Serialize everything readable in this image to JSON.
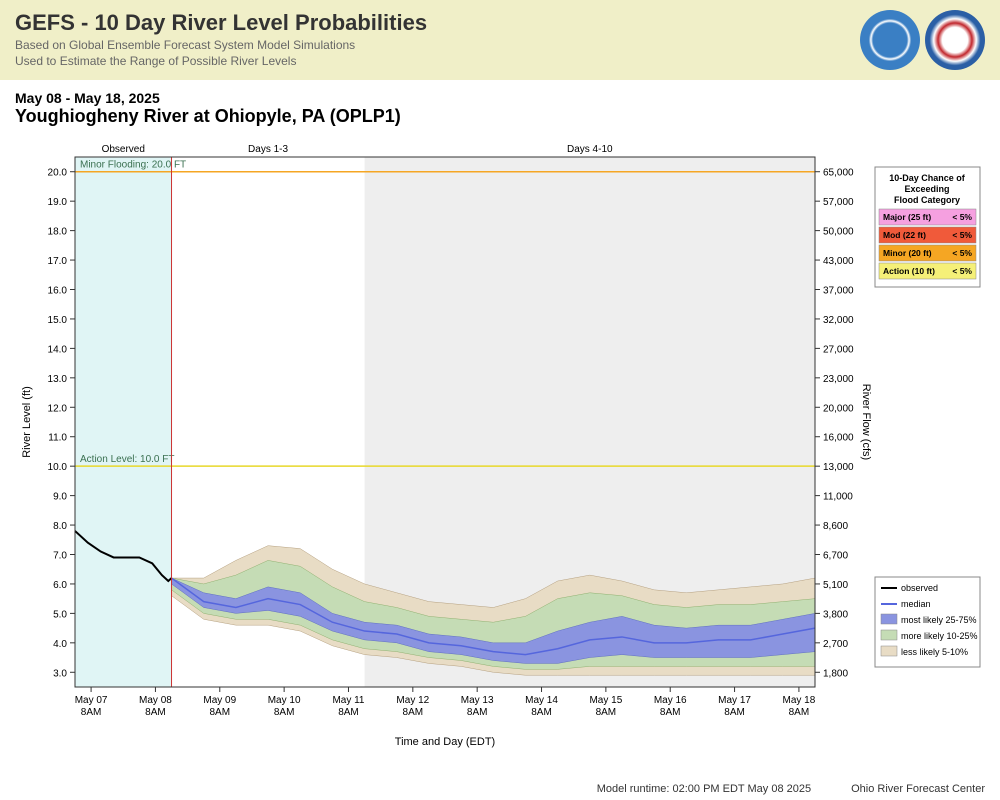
{
  "header": {
    "title": "GEFS - 10 Day River Level Probabilities",
    "subtitle1": "Based on Global Ensemble Forecast System Model Simulations",
    "subtitle2": "Used to Estimate the Range of Possible River Levels"
  },
  "chart": {
    "date_range": "May 08 - May 18, 2025",
    "location": "Youghiogheny River at Ohiopyle, PA (OPLP1)",
    "zone_labels": {
      "observed": "Observed",
      "days13": "Days 1-3",
      "days410": "Days 4-10"
    },
    "x_label": "Time and Day (EDT)",
    "y_left_label": "River Level (ft)",
    "y_right_label": "River Flow (cfs)",
    "x_ticks": [
      "May 07\n8AM",
      "May 08\n8AM",
      "May 09\n8AM",
      "May 10\n8AM",
      "May 11\n8AM",
      "May 12\n8AM",
      "May 13\n8AM",
      "May 14\n8AM",
      "May 15\n8AM",
      "May 16\n8AM",
      "May 17\n8AM",
      "May 18\n8AM"
    ],
    "y_left_ticks": [
      3,
      4,
      5,
      6,
      7,
      8,
      9,
      10,
      11,
      12,
      13,
      14,
      15,
      16,
      17,
      18,
      19,
      20
    ],
    "y_right_ticks": [
      "1,800",
      "2,700",
      "3,800",
      "5,100",
      "6,700",
      "8,600",
      "11,000",
      "13,000",
      "16,000",
      "20,000",
      "23,000",
      "27,000",
      "32,000",
      "37,000",
      "43,000",
      "50,000",
      "57,000",
      "65,000"
    ],
    "y_min": 2.5,
    "y_max": 20.5,
    "thresholds": {
      "minor_flooding": {
        "label": "Minor Flooding: 20.0 FT",
        "value": 20.0,
        "color": "#f5a623"
      },
      "action_level": {
        "label": "Action Level: 10.0 FT",
        "value": 10.0,
        "color": "#e8d82a"
      }
    },
    "zones": {
      "observed_end_idx": 1.5,
      "days13_end_idx": 4.5,
      "observed_fill": "#e0f5f5",
      "forecast_fill": "#eeeeee",
      "now_line_color": "#cc3333"
    },
    "series": {
      "observed": {
        "color": "#000000",
        "width": 2,
        "pts": [
          [
            0,
            7.8
          ],
          [
            0.2,
            7.4
          ],
          [
            0.4,
            7.1
          ],
          [
            0.6,
            6.9
          ],
          [
            0.8,
            6.9
          ],
          [
            1.0,
            6.9
          ],
          [
            1.2,
            6.7
          ],
          [
            1.35,
            6.3
          ],
          [
            1.45,
            6.1
          ],
          [
            1.5,
            6.2
          ]
        ]
      },
      "median": {
        "color": "#5566dd",
        "width": 1.5,
        "pts": [
          [
            1.5,
            6.2
          ],
          [
            2,
            5.4
          ],
          [
            2.5,
            5.2
          ],
          [
            3,
            5.5
          ],
          [
            3.5,
            5.3
          ],
          [
            4,
            4.7
          ],
          [
            4.5,
            4.4
          ],
          [
            5,
            4.3
          ],
          [
            5.5,
            4.0
          ],
          [
            6,
            3.9
          ],
          [
            6.5,
            3.7
          ],
          [
            7,
            3.6
          ],
          [
            7.5,
            3.8
          ],
          [
            8,
            4.1
          ],
          [
            8.5,
            4.2
          ],
          [
            9,
            4.0
          ],
          [
            9.5,
            4.0
          ],
          [
            10,
            4.1
          ],
          [
            10.5,
            4.1
          ],
          [
            11,
            4.3
          ],
          [
            11.5,
            4.5
          ]
        ]
      },
      "band_2575": {
        "fill": "#8a94e0",
        "upper": [
          [
            1.5,
            6.2
          ],
          [
            2,
            5.7
          ],
          [
            2.5,
            5.5
          ],
          [
            3,
            5.9
          ],
          [
            3.5,
            5.7
          ],
          [
            4,
            5.0
          ],
          [
            4.5,
            4.7
          ],
          [
            5,
            4.6
          ],
          [
            5.5,
            4.3
          ],
          [
            6,
            4.2
          ],
          [
            6.5,
            4.0
          ],
          [
            7,
            4.0
          ],
          [
            7.5,
            4.4
          ],
          [
            8,
            4.7
          ],
          [
            8.5,
            4.9
          ],
          [
            9,
            4.6
          ],
          [
            9.5,
            4.5
          ],
          [
            10,
            4.6
          ],
          [
            10.5,
            4.6
          ],
          [
            11,
            4.8
          ],
          [
            11.5,
            5.0
          ]
        ],
        "lower": [
          [
            1.5,
            6.0
          ],
          [
            2,
            5.2
          ],
          [
            2.5,
            5.0
          ],
          [
            3,
            5.1
          ],
          [
            3.5,
            4.9
          ],
          [
            4,
            4.4
          ],
          [
            4.5,
            4.1
          ],
          [
            5,
            4.0
          ],
          [
            5.5,
            3.7
          ],
          [
            6,
            3.6
          ],
          [
            6.5,
            3.4
          ],
          [
            7,
            3.3
          ],
          [
            7.5,
            3.3
          ],
          [
            8,
            3.5
          ],
          [
            8.5,
            3.6
          ],
          [
            9,
            3.5
          ],
          [
            9.5,
            3.5
          ],
          [
            10,
            3.5
          ],
          [
            10.5,
            3.5
          ],
          [
            11,
            3.6
          ],
          [
            11.5,
            3.7
          ]
        ]
      },
      "band_1025": {
        "fill": "#c5dcb5",
        "upper": [
          [
            1.5,
            6.2
          ],
          [
            2,
            6.0
          ],
          [
            2.5,
            6.3
          ],
          [
            3,
            6.8
          ],
          [
            3.5,
            6.6
          ],
          [
            4,
            5.9
          ],
          [
            4.5,
            5.4
          ],
          [
            5,
            5.2
          ],
          [
            5.5,
            4.9
          ],
          [
            6,
            4.8
          ],
          [
            6.5,
            4.7
          ],
          [
            7,
            4.9
          ],
          [
            7.5,
            5.5
          ],
          [
            8,
            5.7
          ],
          [
            8.5,
            5.6
          ],
          [
            9,
            5.3
          ],
          [
            9.5,
            5.2
          ],
          [
            10,
            5.3
          ],
          [
            10.5,
            5.3
          ],
          [
            11,
            5.4
          ],
          [
            11.5,
            5.5
          ]
        ],
        "lower": [
          [
            1.5,
            5.8
          ],
          [
            2,
            5.0
          ],
          [
            2.5,
            4.8
          ],
          [
            3,
            4.8
          ],
          [
            3.5,
            4.6
          ],
          [
            4,
            4.1
          ],
          [
            4.5,
            3.8
          ],
          [
            5,
            3.7
          ],
          [
            5.5,
            3.5
          ],
          [
            6,
            3.4
          ],
          [
            6.5,
            3.2
          ],
          [
            7,
            3.1
          ],
          [
            7.5,
            3.1
          ],
          [
            8,
            3.2
          ],
          [
            8.5,
            3.2
          ],
          [
            9,
            3.2
          ],
          [
            9.5,
            3.2
          ],
          [
            10,
            3.2
          ],
          [
            10.5,
            3.2
          ],
          [
            11,
            3.2
          ],
          [
            11.5,
            3.2
          ]
        ]
      },
      "band_0510": {
        "fill": "#e8dcc5",
        "upper": [
          [
            1.5,
            6.2
          ],
          [
            2,
            6.2
          ],
          [
            2.5,
            6.8
          ],
          [
            3,
            7.3
          ],
          [
            3.5,
            7.2
          ],
          [
            4,
            6.5
          ],
          [
            4.5,
            6.0
          ],
          [
            5,
            5.7
          ],
          [
            5.5,
            5.4
          ],
          [
            6,
            5.3
          ],
          [
            6.5,
            5.2
          ],
          [
            7,
            5.5
          ],
          [
            7.5,
            6.1
          ],
          [
            8,
            6.3
          ],
          [
            8.5,
            6.1
          ],
          [
            9,
            5.8
          ],
          [
            9.5,
            5.7
          ],
          [
            10,
            5.8
          ],
          [
            10.5,
            5.9
          ],
          [
            11,
            6.0
          ],
          [
            11.5,
            6.2
          ]
        ],
        "lower": [
          [
            1.5,
            5.6
          ],
          [
            2,
            4.8
          ],
          [
            2.5,
            4.6
          ],
          [
            3,
            4.6
          ],
          [
            3.5,
            4.4
          ],
          [
            4,
            3.9
          ],
          [
            4.5,
            3.6
          ],
          [
            5,
            3.5
          ],
          [
            5.5,
            3.3
          ],
          [
            6,
            3.2
          ],
          [
            6.5,
            3.0
          ],
          [
            7,
            2.9
          ],
          [
            7.5,
            2.9
          ],
          [
            8,
            2.9
          ],
          [
            8.5,
            2.9
          ],
          [
            9,
            2.9
          ],
          [
            9.5,
            2.9
          ],
          [
            10,
            2.9
          ],
          [
            10.5,
            2.9
          ],
          [
            11,
            2.9
          ],
          [
            11.5,
            2.9
          ]
        ]
      }
    },
    "legend": {
      "items": [
        {
          "label": "observed",
          "type": "line",
          "color": "#000000"
        },
        {
          "label": "median",
          "type": "line",
          "color": "#5566dd"
        },
        {
          "label": "most likely 25-75%",
          "type": "box",
          "color": "#8a94e0"
        },
        {
          "label": "more likely 10-25%",
          "type": "box",
          "color": "#c5dcb5"
        },
        {
          "label": "less likely 5-10%",
          "type": "box",
          "color": "#e8dcc5"
        }
      ]
    },
    "prob_table": {
      "title": "10-Day Chance of Exceeding Flood Category",
      "rows": [
        {
          "cat": "Major (25 ft)",
          "prob": "< 5%",
          "color": "#f5a0e0"
        },
        {
          "cat": "Mod (22 ft)",
          "prob": "< 5%",
          "color": "#f05a3a"
        },
        {
          "cat": "Minor (20 ft)",
          "prob": "< 5%",
          "color": "#f5a623"
        },
        {
          "cat": "Action (10 ft)",
          "prob": "< 5%",
          "color": "#f5f078"
        }
      ]
    }
  },
  "footer": {
    "runtime": "Model runtime:  02:00 PM EDT May 08 2025",
    "center": "Ohio River Forecast Center"
  }
}
